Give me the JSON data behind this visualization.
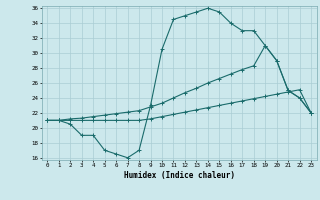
{
  "xlabel": "Humidex (Indice chaleur)",
  "bg_color": "#cce8ec",
  "grid_color": "#aacdd4",
  "line_color": "#1a6b6b",
  "xmin": 0,
  "xmax": 23,
  "ymin": 16,
  "ymax": 36,
  "yticks": [
    16,
    18,
    20,
    22,
    24,
    26,
    28,
    30,
    32,
    34,
    36
  ],
  "xticks": [
    0,
    1,
    2,
    3,
    4,
    5,
    6,
    7,
    8,
    9,
    10,
    11,
    12,
    13,
    14,
    15,
    16,
    17,
    18,
    19,
    20,
    21,
    22,
    23
  ],
  "line1_x": [
    0,
    1,
    2,
    3,
    4,
    5,
    6,
    7,
    8,
    9,
    10,
    11,
    12,
    13,
    14,
    15,
    16,
    17,
    18,
    19,
    20,
    21,
    22,
    23
  ],
  "line1_y": [
    21,
    21,
    20.5,
    19,
    19,
    17,
    16.5,
    16,
    17,
    23,
    30.5,
    34.5,
    35,
    35.5,
    36,
    35.5,
    34,
    33,
    33,
    31,
    29,
    25,
    24,
    22
  ],
  "line2_x": [
    0,
    1,
    2,
    3,
    4,
    5,
    6,
    7,
    8,
    9,
    10,
    11,
    12,
    13,
    14,
    15,
    16,
    17,
    18,
    19,
    20,
    21,
    22,
    23
  ],
  "line2_y": [
    21,
    21,
    21.2,
    21.3,
    21.5,
    21.7,
    21.9,
    22.1,
    22.3,
    22.8,
    23.3,
    24,
    24.7,
    25.3,
    26,
    26.6,
    27.2,
    27.8,
    28.3,
    31,
    29,
    25,
    24,
    22
  ],
  "line3_x": [
    0,
    1,
    2,
    3,
    4,
    5,
    6,
    7,
    8,
    9,
    10,
    11,
    12,
    13,
    14,
    15,
    16,
    17,
    18,
    19,
    20,
    21,
    22,
    23
  ],
  "line3_y": [
    21,
    21,
    21,
    21,
    21,
    21,
    21,
    21,
    21,
    21.2,
    21.5,
    21.8,
    22.1,
    22.4,
    22.7,
    23,
    23.3,
    23.6,
    23.9,
    24.2,
    24.5,
    24.8,
    25.1,
    22
  ]
}
